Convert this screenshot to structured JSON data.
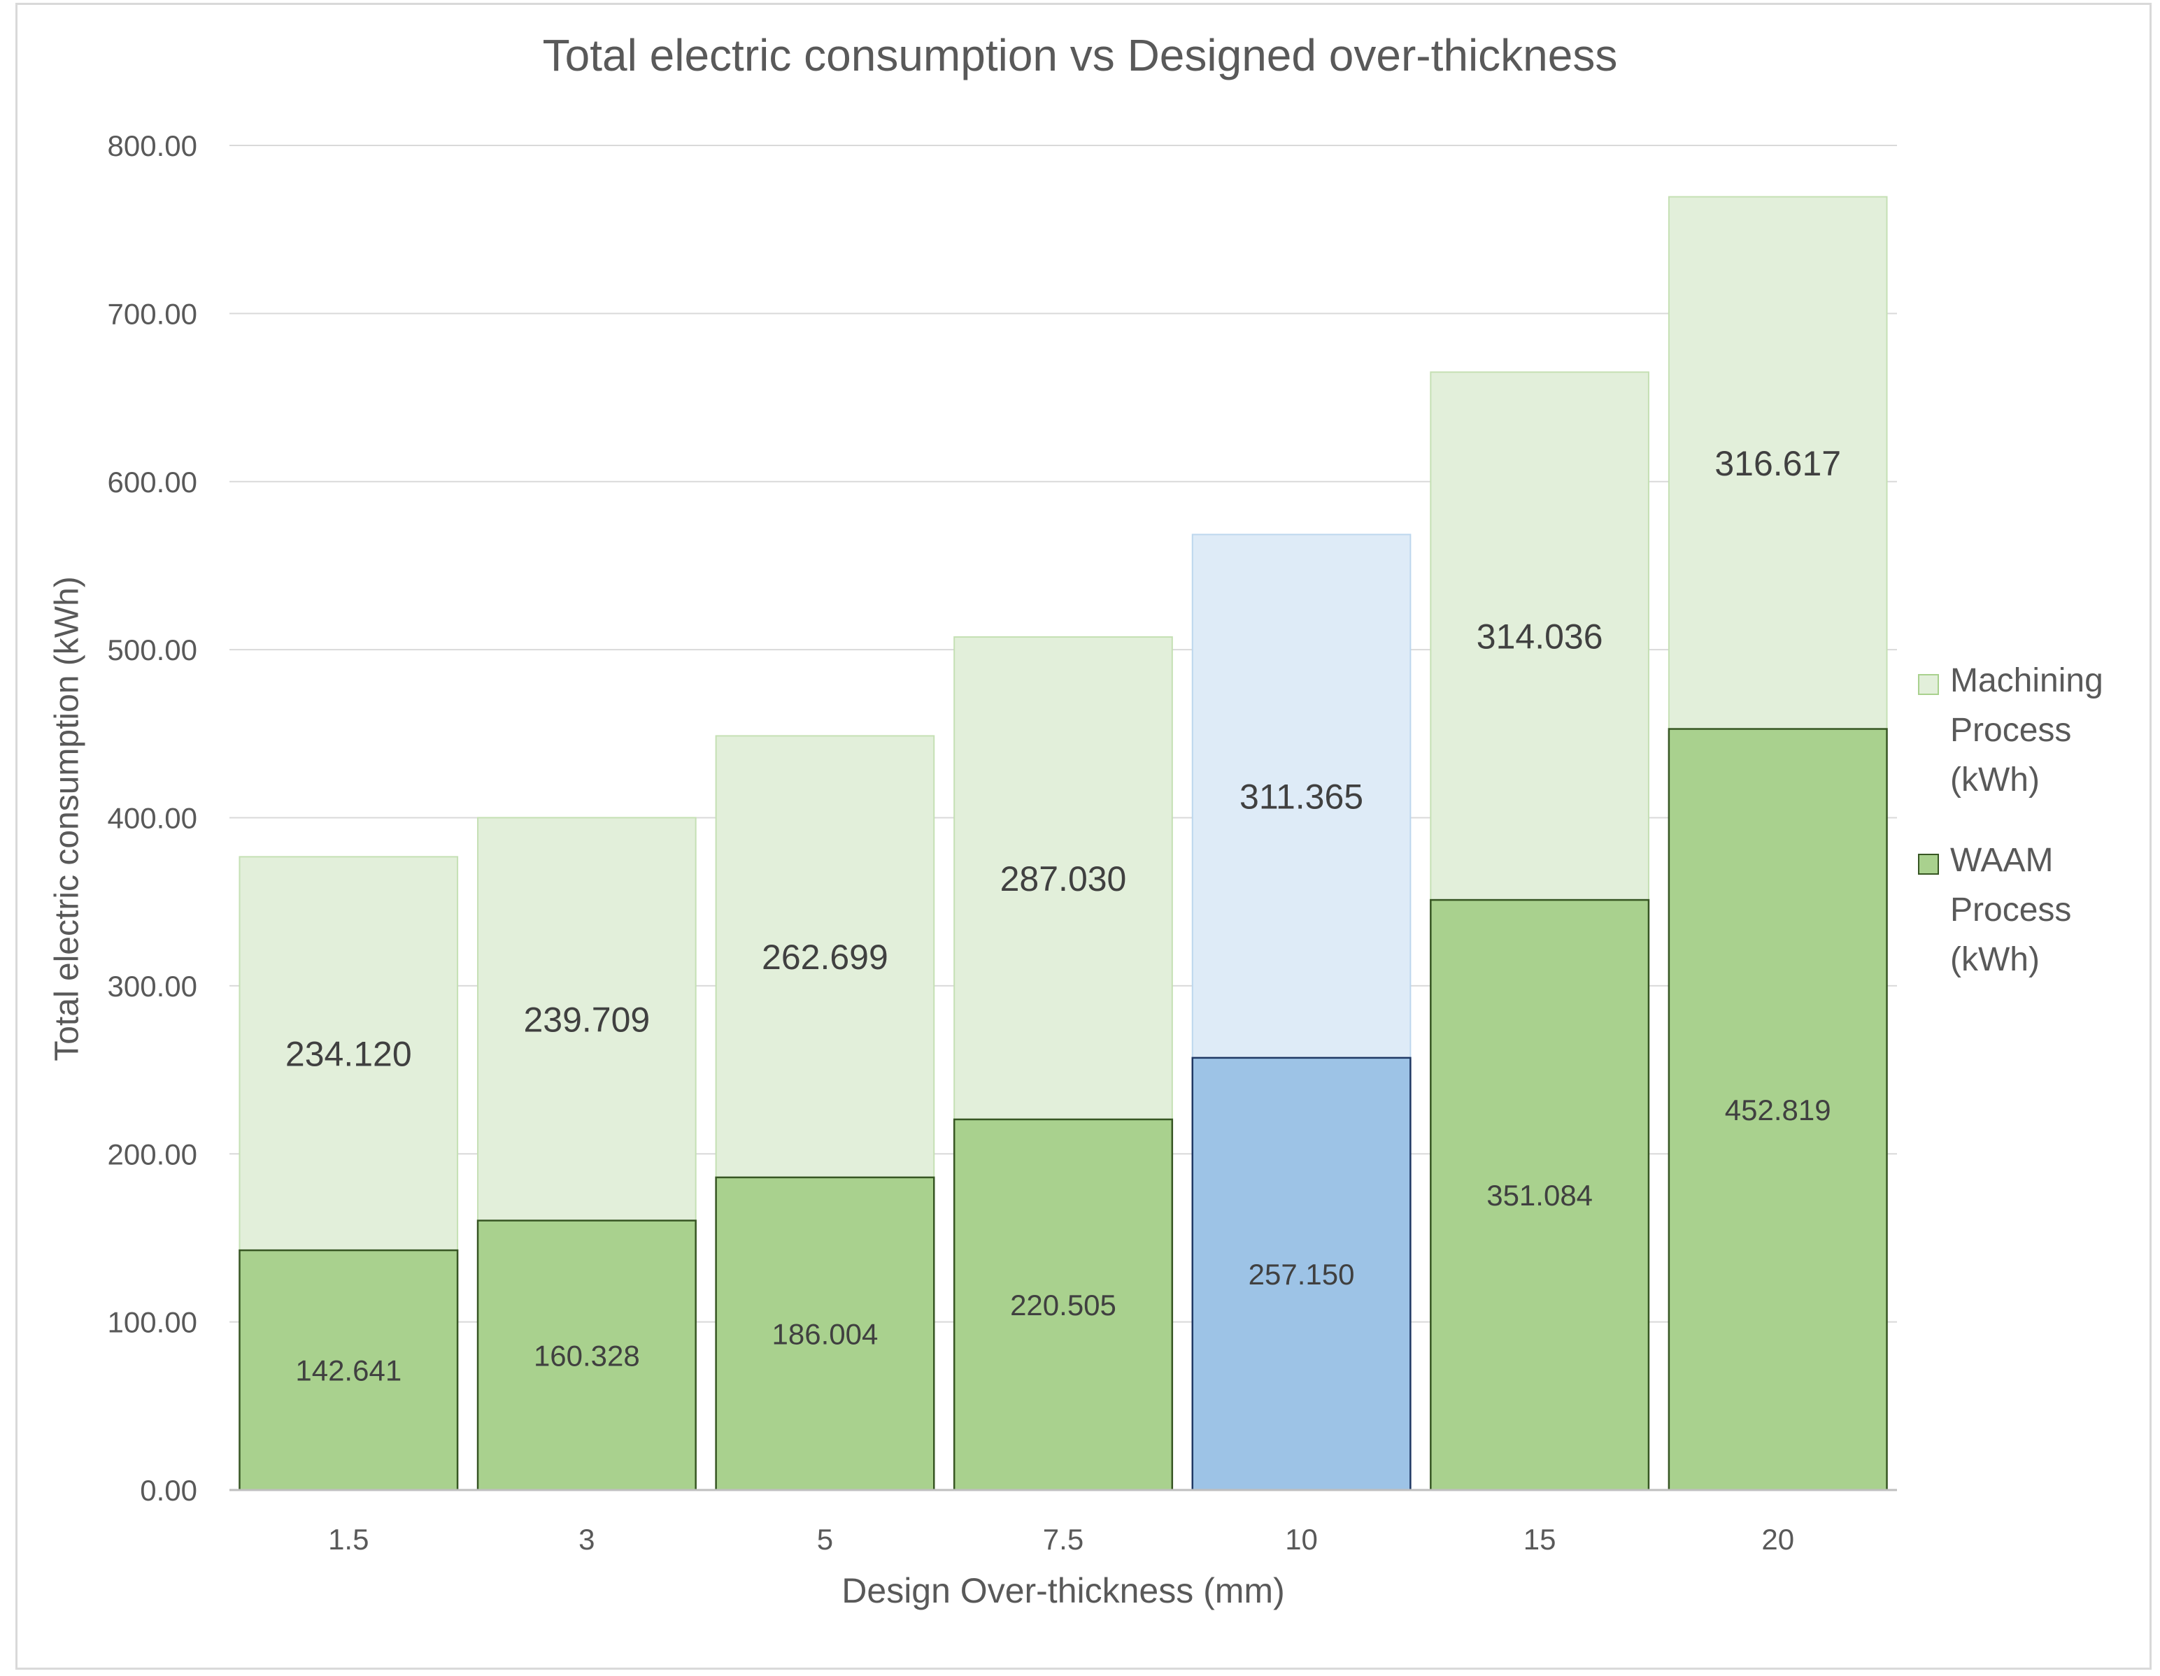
{
  "chart_data": {
    "type": "bar",
    "stacked": true,
    "title": "Total electric consumption vs Designed over-thickness",
    "xlabel": "Design Over-thickness (mm)",
    "ylabel": "Total electric consumption (kWh)",
    "categories": [
      "1.5",
      "3",
      "5",
      "7.5",
      "10",
      "15",
      "20"
    ],
    "ylim": [
      0,
      800
    ],
    "yticks": [
      "0.00",
      "100.00",
      "200.00",
      "300.00",
      "400.00",
      "500.00",
      "600.00",
      "700.00",
      "800.00"
    ],
    "series": [
      {
        "name": "WAAM Process (kWh)",
        "values": [
          142.641,
          160.328,
          186.004,
          220.505,
          257.15,
          351.084,
          452.819
        ],
        "labels": [
          "142.641",
          "160.328",
          "186.004",
          "220.505",
          "257.150",
          "351.084",
          "452.819"
        ],
        "color": "#a9d18e",
        "stroke": "#375623"
      },
      {
        "name": "Machining Process (kWh)",
        "values": [
          234.12,
          239.709,
          262.699,
          287.03,
          311.365,
          314.036,
          316.617
        ],
        "labels": [
          "234.120",
          "239.709",
          "262.699",
          "287.030",
          "311.365",
          "314.036",
          "316.617"
        ],
        "color": "#e2efda",
        "stroke": "#c5e0b4"
      }
    ],
    "highlight": {
      "category": "10",
      "bottom_color": "#9dc3e6",
      "top_color": "#deebf7"
    },
    "grid": true,
    "legend_position": "right",
    "legend_order": [
      "Machining Process (kWh)",
      "WAAM Process (kWh)"
    ]
  }
}
